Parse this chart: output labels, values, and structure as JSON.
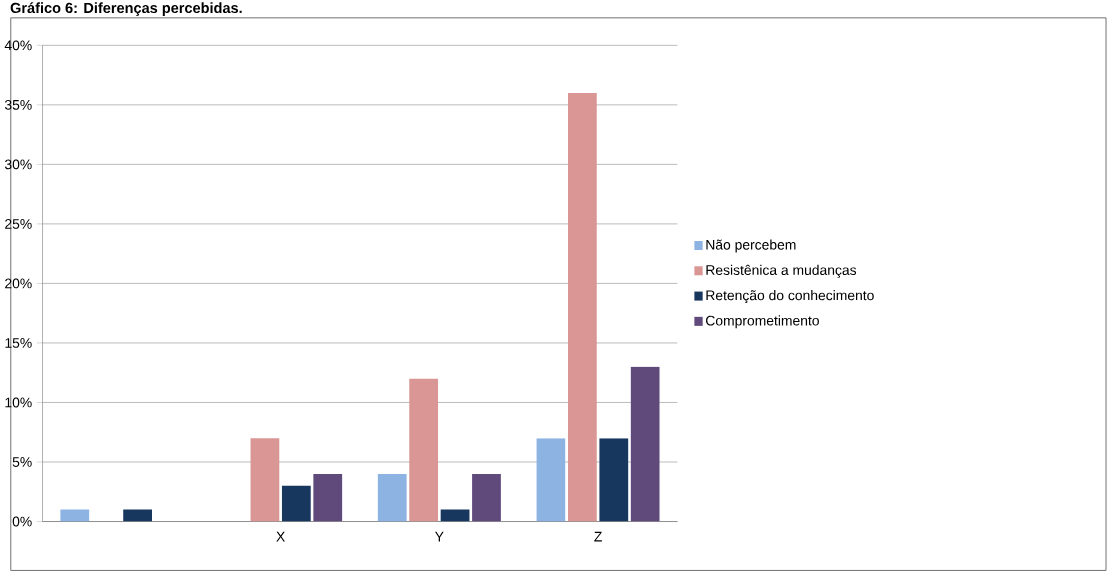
{
  "chart_data": {
    "type": "bar",
    "title": "Gráfico 6: Diferenças percebidas.",
    "categories": [
      null,
      "X",
      "Y",
      "Z"
    ],
    "series": [
      {
        "name": "Não percebem",
        "color": "#8db3e2",
        "values": [
          1,
          0,
          4,
          7
        ]
      },
      {
        "name": "Resistênica a mudanças",
        "color": "#d99694",
        "values": [
          0,
          7,
          12,
          36
        ]
      },
      {
        "name": "Retenção do conhecimento",
        "color": "#17375e",
        "values": [
          1,
          3,
          1,
          7
        ]
      },
      {
        "name": "Comprometimento",
        "color": "#604a7b",
        "values": [
          0,
          4,
          4,
          13
        ]
      }
    ],
    "ylim": [
      0,
      40
    ],
    "yticks": [
      {
        "value": 0,
        "label": "0%"
      },
      {
        "value": 5,
        "label": "5%"
      },
      {
        "value": 10,
        "label": "10%"
      },
      {
        "value": 15,
        "label": "15%"
      },
      {
        "value": 20,
        "label": "20%"
      },
      {
        "value": 25,
        "label": "25%"
      },
      {
        "value": 30,
        "label": "30%"
      },
      {
        "value": 35,
        "label": "35%"
      },
      {
        "value": 40,
        "label": "40%"
      }
    ],
    "grid": "y",
    "legend": "right"
  }
}
